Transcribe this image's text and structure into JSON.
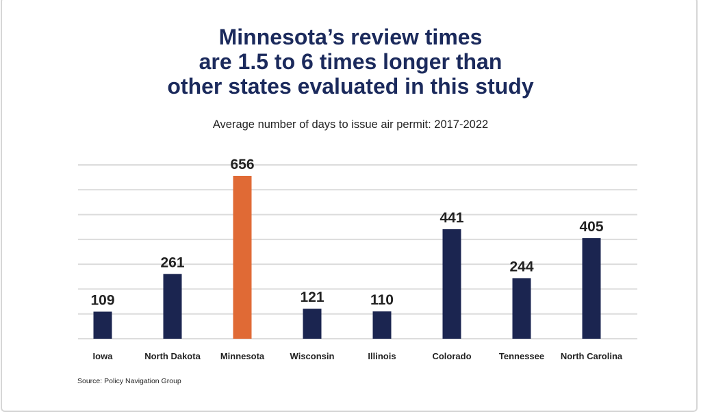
{
  "colors": {
    "title": "#1b2a5c",
    "bar_default": "#1b2550",
    "bar_highlight": "#e06a35",
    "grid": "#dcdcdc"
  },
  "chart_data": {
    "type": "bar",
    "title_lines": [
      "Minnesota’s review times",
      "are 1.5 to 6 times longer than",
      "other states evaluated in this study"
    ],
    "subtitle": "Average number of days to issue air permit: 2017-2022",
    "categories": [
      "Iowa",
      "North Dakota",
      "Minnesota",
      "Wisconsin",
      "Illinois",
      "Colorado",
      "Tennessee",
      "North Carolina"
    ],
    "values": [
      109,
      261,
      656,
      121,
      110,
      441,
      244,
      405
    ],
    "value_labels": [
      "109",
      "261",
      "656",
      "121",
      "110",
      "441",
      "244",
      "405"
    ],
    "highlight": "Minnesota",
    "xlabel": "",
    "ylabel": "",
    "ylim": [
      0,
      700
    ],
    "grid": true,
    "y_axis_ticks_visible": false,
    "source": "Source: Policy Navigation Group"
  }
}
